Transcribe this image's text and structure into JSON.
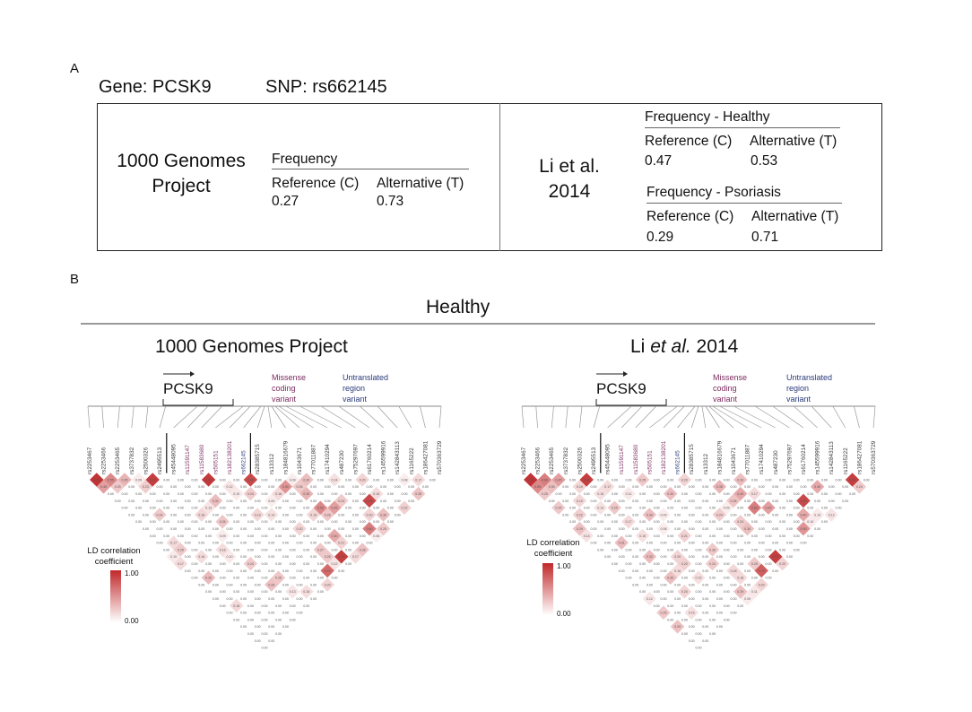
{
  "panel_a": {
    "label": "A",
    "gene_label": "Gene: PCSK9",
    "snp_label": "SNP: rs662145",
    "g1000": {
      "source": [
        "1000 Genomes",
        "Project"
      ],
      "freq_title": "Frequency",
      "ref_label": "Reference (C)",
      "alt_label": "Alternative (T)",
      "ref_value": "0.27",
      "alt_value": "0.73"
    },
    "li": {
      "source": [
        "Li et al.",
        "2014"
      ],
      "healthy": {
        "title": "Frequency - Healthy",
        "ref_label": "Reference (C)",
        "alt_label": "Alternative (T)",
        "ref_value": "0.47",
        "alt_value": "0.53"
      },
      "psoriasis": {
        "title": "Frequency - Psoriasis",
        "ref_label": "Reference (C)",
        "alt_label": "Alternative (T)",
        "ref_value": "0.29",
        "alt_value": "0.71"
      }
    }
  },
  "panel_b": {
    "label": "B",
    "title": "Healthy",
    "left_title": "1000 Genomes Project",
    "right_title_pre": "Li ",
    "right_title_italic": "et al.",
    "right_title_post": " 2014",
    "gene": "PCSK9",
    "missense_label": [
      "Missense",
      "coding",
      "variant"
    ],
    "utr_label": [
      "Untranslated",
      "region",
      "variant"
    ],
    "legend_title": [
      "LD correlation",
      "coefficient"
    ],
    "legend_max": "1.00",
    "legend_min": "0.00",
    "colors": {
      "high": "#c0282a",
      "low": "#ffffff",
      "missense": "#7a2b5e",
      "utr": "#2b3a7a"
    }
  },
  "chart_data": {
    "type": "heatmap",
    "snps": [
      "rs2253467",
      "rs2253466",
      "rs2253465",
      "rs3737832",
      "rs2500326",
      "rs2495513",
      "rs45448095",
      "rs11591147",
      "rs11583680",
      "rs505151",
      "rs182138201",
      "rs662145",
      "rs28385715",
      "rs13312",
      "rs184816679",
      "rs1043671",
      "rs77011887",
      "rs17410294",
      "rs487230",
      "rs75297697",
      "rs61760214",
      "rs145599916",
      "rs142843113",
      "rs1165222",
      "rs186427081",
      "rs570363729"
    ],
    "missense_snps": [
      "rs11591147",
      "rs11583680",
      "rs505151",
      "rs182138201"
    ],
    "utr_snps": [
      "rs662145"
    ],
    "value_range": [
      0,
      1
    ]
  }
}
